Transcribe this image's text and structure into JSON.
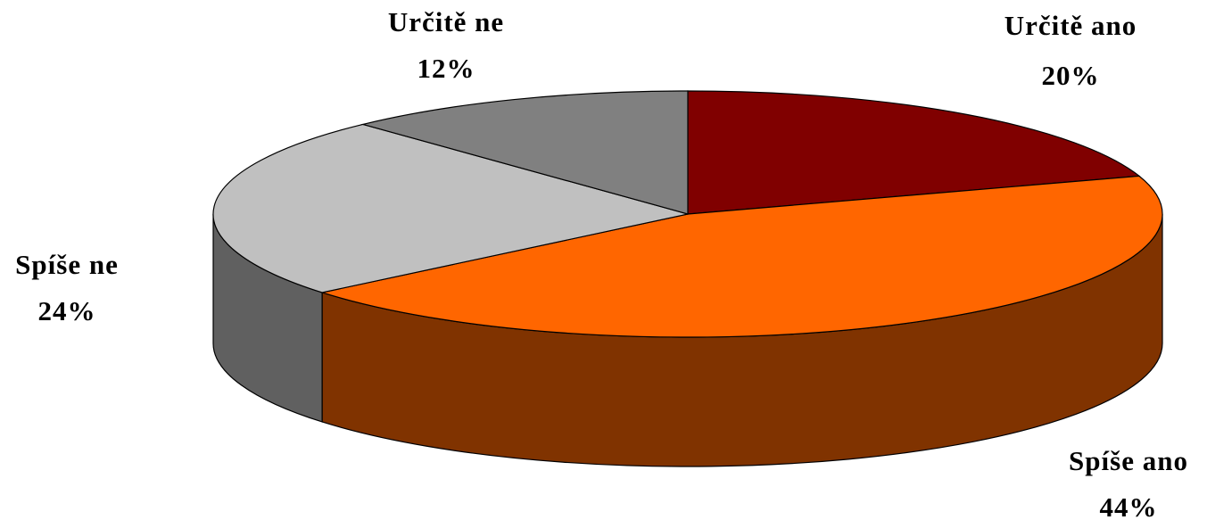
{
  "chart_data": {
    "type": "pie",
    "categories": [
      "Určitě ano",
      "Spíše ano",
      "Spíše ne",
      "Určitě ne"
    ],
    "values": [
      20,
      44,
      24,
      12
    ],
    "value_labels": [
      "20%",
      "44%",
      "24%",
      "12%"
    ],
    "colors": [
      "#800000",
      "#ff6600",
      "#c0c0c0",
      "#808080"
    ],
    "three_d": true
  }
}
